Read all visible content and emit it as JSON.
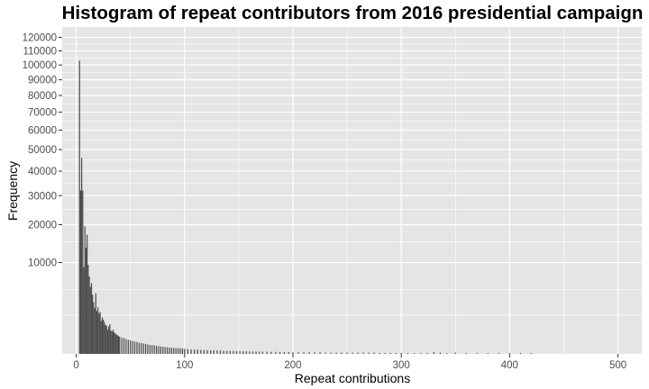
{
  "chart_data": {
    "type": "bar",
    "title": "Histogram of repeat contributors from 2016 presidential campaign",
    "xlabel": "Repeat contributions",
    "ylabel": "Frequency",
    "y_scale": "sqrt",
    "xlim": [
      -13,
      522
    ],
    "ylim": [
      0,
      128000
    ],
    "grid": true,
    "bar_color": "#4a4a4a",
    "panel_background": "#e5e5e5",
    "grid_color": "#ffffff",
    "x_ticks": [
      0,
      100,
      200,
      300,
      400,
      500
    ],
    "x_tick_labels": [
      "0",
      "100",
      "200",
      "300",
      "400",
      "500"
    ],
    "y_ticks": [
      10000,
      20000,
      30000,
      40000,
      50000,
      60000,
      70000,
      80000,
      90000,
      100000,
      110000,
      120000
    ],
    "y_tick_labels": [
      "10000",
      "20000",
      "30000",
      "40000",
      "50000",
      "60000",
      "70000",
      "80000",
      "90000",
      "100000",
      "110000",
      "120000"
    ],
    "bin_width": 1,
    "bins_x": [
      3,
      4,
      5,
      6,
      7,
      8,
      9,
      10,
      11,
      12,
      13,
      14,
      15,
      16,
      17,
      18,
      19,
      20,
      21,
      22,
      23,
      24,
      25,
      26,
      27,
      28,
      29,
      30,
      31,
      32,
      33,
      34,
      35,
      36,
      37,
      38,
      39,
      40,
      42,
      44,
      46,
      48,
      50,
      52,
      54,
      56,
      58,
      60,
      62,
      64,
      66,
      68,
      70,
      72,
      74,
      76,
      78,
      80,
      82,
      84,
      86,
      88,
      90,
      92,
      94,
      96,
      98,
      100,
      103,
      106,
      109,
      112,
      115,
      118,
      121,
      124,
      127,
      130,
      133,
      136,
      139,
      142,
      145,
      148,
      151,
      154,
      157,
      160,
      163,
      166,
      169,
      172,
      176,
      180,
      184,
      188,
      192,
      196,
      200,
      205,
      210,
      215,
      220,
      225,
      230,
      235,
      240,
      245,
      250,
      255,
      260,
      265,
      270,
      275,
      280,
      285,
      290,
      295,
      300,
      306,
      312,
      318,
      324,
      330,
      336,
      342,
      350,
      360,
      370,
      380,
      390,
      400,
      410,
      420,
      431
    ],
    "values": [
      103000,
      32000,
      46000,
      32000,
      9000,
      19500,
      13500,
      17000,
      9500,
      7200,
      5400,
      6000,
      4200,
      3200,
      2500,
      4400,
      2200,
      2600,
      1950,
      2100,
      1300,
      1600,
      1400,
      1200,
      1000,
      950,
      700,
      900,
      1050,
      650,
      600,
      700,
      560,
      500,
      450,
      420,
      380,
      350,
      320,
      300,
      260,
      240,
      220,
      200,
      180,
      170,
      150,
      140,
      130,
      120,
      105,
      95,
      90,
      85,
      78,
      72,
      66,
      60,
      56,
      52,
      48,
      45,
      42,
      40,
      38,
      36,
      34,
      32,
      28,
      25,
      23,
      21,
      19,
      18,
      17,
      16,
      15,
      14,
      13,
      12,
      11,
      10,
      10,
      9,
      9,
      8,
      8,
      7,
      7,
      6,
      6,
      6,
      5,
      5,
      5,
      4,
      4,
      4,
      3,
      3,
      3,
      3,
      3,
      3,
      2,
      2,
      2,
      2,
      2,
      2,
      2,
      2,
      2,
      2,
      1,
      1,
      1,
      1,
      1,
      1,
      1,
      1,
      1,
      4,
      2,
      1,
      2,
      1,
      1,
      1,
      1,
      1,
      1,
      1
    ]
  }
}
